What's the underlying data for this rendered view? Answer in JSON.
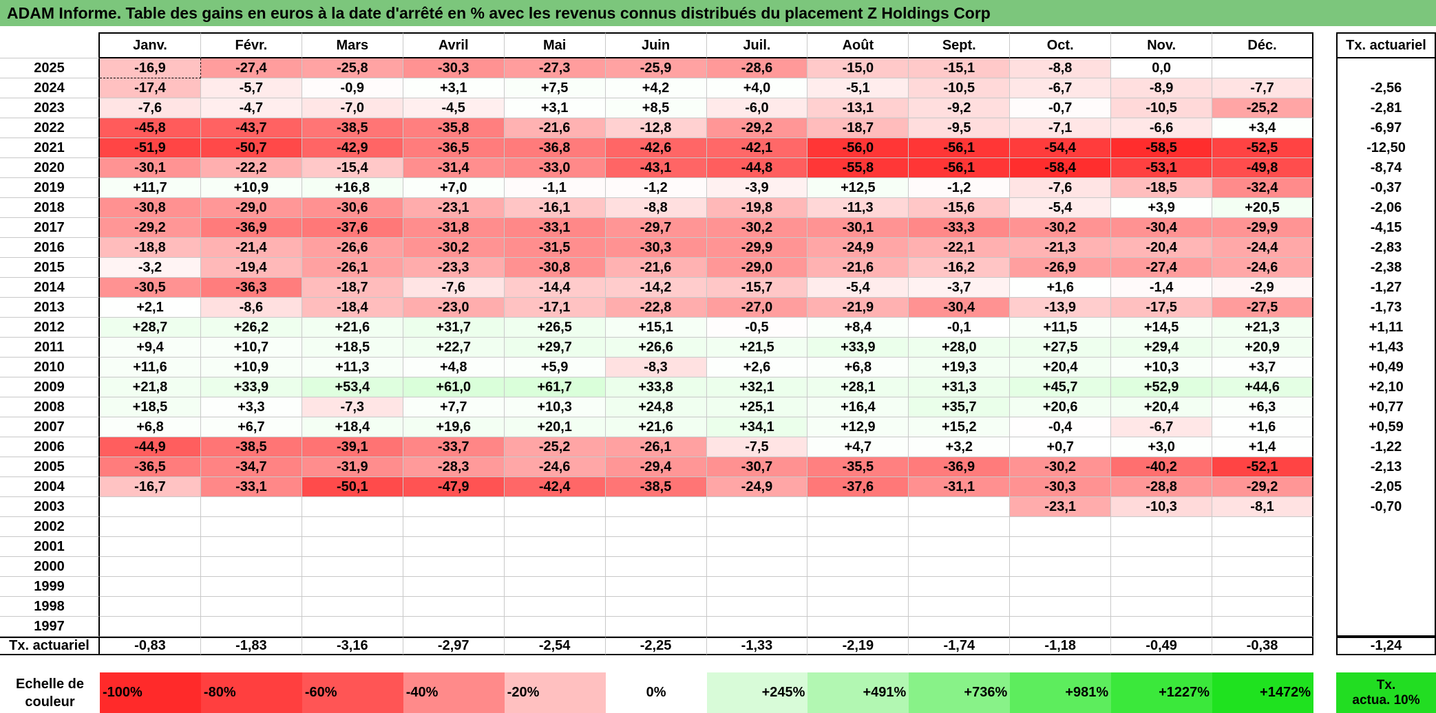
{
  "title": "ADAM Informe. Table des gains en euros à la date d'arrêté en % avec les revenus connus distribués du placement Z Holdings Corp",
  "months": [
    "Janv.",
    "Févr.",
    "Mars",
    "Avril",
    "Mai",
    "Juin",
    "Juil.",
    "Août",
    "Sept.",
    "Oct.",
    "Nov.",
    "Déc."
  ],
  "tx_header": "Tx. actuariel",
  "rows": [
    {
      "year": "2025",
      "values": [
        "-16,9",
        "-27,4",
        "-25,8",
        "-30,3",
        "-27,3",
        "-25,9",
        "-28,6",
        "-15,0",
        "-15,1",
        "-8,8",
        "0,0",
        ""
      ],
      "tx": ""
    },
    {
      "year": "2024",
      "values": [
        "-17,4",
        "-5,7",
        "-0,9",
        "+3,1",
        "+7,5",
        "+4,2",
        "+4,0",
        "-5,1",
        "-10,5",
        "-6,7",
        "-8,9",
        "-7,7"
      ],
      "tx": "-2,56"
    },
    {
      "year": "2023",
      "values": [
        "-7,6",
        "-4,7",
        "-7,0",
        "-4,5",
        "+3,1",
        "+8,5",
        "-6,0",
        "-13,1",
        "-9,2",
        "-0,7",
        "-10,5",
        "-25,2"
      ],
      "tx": "-2,81"
    },
    {
      "year": "2022",
      "values": [
        "-45,8",
        "-43,7",
        "-38,5",
        "-35,8",
        "-21,6",
        "-12,8",
        "-29,2",
        "-18,7",
        "-9,5",
        "-7,1",
        "-6,6",
        "+3,4"
      ],
      "tx": "-6,97"
    },
    {
      "year": "2021",
      "values": [
        "-51,9",
        "-50,7",
        "-42,9",
        "-36,5",
        "-36,8",
        "-42,6",
        "-42,1",
        "-56,0",
        "-56,1",
        "-54,4",
        "-58,5",
        "-52,5"
      ],
      "tx": "-12,50"
    },
    {
      "year": "2020",
      "values": [
        "-30,1",
        "-22,2",
        "-15,4",
        "-31,4",
        "-33,0",
        "-43,1",
        "-44,8",
        "-55,8",
        "-56,1",
        "-58,4",
        "-53,1",
        "-49,8"
      ],
      "tx": "-8,74"
    },
    {
      "year": "2019",
      "values": [
        "+11,7",
        "+10,9",
        "+16,8",
        "+7,0",
        "-1,1",
        "-1,2",
        "-3,9",
        "+12,5",
        "-1,2",
        "-7,6",
        "-18,5",
        "-32,4"
      ],
      "tx": "-0,37"
    },
    {
      "year": "2018",
      "values": [
        "-30,8",
        "-29,0",
        "-30,6",
        "-23,1",
        "-16,1",
        "-8,8",
        "-19,8",
        "-11,3",
        "-15,6",
        "-5,4",
        "+3,9",
        "+20,5"
      ],
      "tx": "-2,06"
    },
    {
      "year": "2017",
      "values": [
        "-29,2",
        "-36,9",
        "-37,6",
        "-31,8",
        "-33,1",
        "-29,7",
        "-30,2",
        "-30,1",
        "-33,3",
        "-30,2",
        "-30,4",
        "-29,9"
      ],
      "tx": "-4,15"
    },
    {
      "year": "2016",
      "values": [
        "-18,8",
        "-21,4",
        "-26,6",
        "-30,2",
        "-31,5",
        "-30,3",
        "-29,9",
        "-24,9",
        "-22,1",
        "-21,3",
        "-20,4",
        "-24,4"
      ],
      "tx": "-2,83"
    },
    {
      "year": "2015",
      "values": [
        "-3,2",
        "-19,4",
        "-26,1",
        "-23,3",
        "-30,8",
        "-21,6",
        "-29,0",
        "-21,6",
        "-16,2",
        "-26,9",
        "-27,4",
        "-24,6"
      ],
      "tx": "-2,38"
    },
    {
      "year": "2014",
      "values": [
        "-30,5",
        "-36,3",
        "-18,7",
        "-7,6",
        "-14,4",
        "-14,2",
        "-15,7",
        "-5,4",
        "-3,7",
        "+1,6",
        "-1,4",
        "-2,9"
      ],
      "tx": "-1,27"
    },
    {
      "year": "2013",
      "values": [
        "+2,1",
        "-8,6",
        "-18,4",
        "-23,0",
        "-17,1",
        "-22,8",
        "-27,0",
        "-21,9",
        "-30,4",
        "-13,9",
        "-17,5",
        "-27,5"
      ],
      "tx": "-1,73"
    },
    {
      "year": "2012",
      "values": [
        "+28,7",
        "+26,2",
        "+21,6",
        "+31,7",
        "+26,5",
        "+15,1",
        "-0,5",
        "+8,4",
        "-0,1",
        "+11,5",
        "+14,5",
        "+21,3"
      ],
      "tx": "+1,11"
    },
    {
      "year": "2011",
      "values": [
        "+9,4",
        "+10,7",
        "+18,5",
        "+22,7",
        "+29,7",
        "+26,6",
        "+21,5",
        "+33,9",
        "+28,0",
        "+27,5",
        "+29,4",
        "+20,9"
      ],
      "tx": "+1,43"
    },
    {
      "year": "2010",
      "values": [
        "+11,6",
        "+10,9",
        "+11,3",
        "+4,8",
        "+5,9",
        "-8,3",
        "+2,6",
        "+6,8",
        "+19,3",
        "+20,4",
        "+10,3",
        "+3,7"
      ],
      "tx": "+0,49"
    },
    {
      "year": "2009",
      "values": [
        "+21,8",
        "+33,9",
        "+53,4",
        "+61,0",
        "+61,7",
        "+33,8",
        "+32,1",
        "+28,1",
        "+31,3",
        "+45,7",
        "+52,9",
        "+44,6"
      ],
      "tx": "+2,10"
    },
    {
      "year": "2008",
      "values": [
        "+18,5",
        "+3,3",
        "-7,3",
        "+7,7",
        "+10,3",
        "+24,8",
        "+25,1",
        "+16,4",
        "+35,7",
        "+20,6",
        "+20,4",
        "+6,3"
      ],
      "tx": "+0,77"
    },
    {
      "year": "2007",
      "values": [
        "+6,8",
        "+6,7",
        "+18,4",
        "+19,6",
        "+20,1",
        "+21,6",
        "+34,1",
        "+12,9",
        "+15,2",
        "-0,4",
        "-6,7",
        "+1,6"
      ],
      "tx": "+0,59"
    },
    {
      "year": "2006",
      "values": [
        "-44,9",
        "-38,5",
        "-39,1",
        "-33,7",
        "-25,2",
        "-26,1",
        "-7,5",
        "+4,7",
        "+3,2",
        "+0,7",
        "+3,0",
        "+1,4"
      ],
      "tx": "-1,22"
    },
    {
      "year": "2005",
      "values": [
        "-36,5",
        "-34,7",
        "-31,9",
        "-28,3",
        "-24,6",
        "-29,4",
        "-30,7",
        "-35,5",
        "-36,9",
        "-30,2",
        "-40,2",
        "-52,1"
      ],
      "tx": "-2,13"
    },
    {
      "year": "2004",
      "values": [
        "-16,7",
        "-33,1",
        "-50,1",
        "-47,9",
        "-42,4",
        "-38,5",
        "-24,9",
        "-37,6",
        "-31,1",
        "-30,3",
        "-28,8",
        "-29,2"
      ],
      "tx": "-2,05"
    },
    {
      "year": "2003",
      "values": [
        "",
        "",
        "",
        "",
        "",
        "",
        "",
        "",
        "",
        "-23,1",
        "-10,3",
        "-8,1"
      ],
      "tx": "-0,70"
    },
    {
      "year": "2002",
      "values": [
        "",
        "",
        "",
        "",
        "",
        "",
        "",
        "",
        "",
        "",
        "",
        ""
      ],
      "tx": ""
    },
    {
      "year": "2001",
      "values": [
        "",
        "",
        "",
        "",
        "",
        "",
        "",
        "",
        "",
        "",
        "",
        ""
      ],
      "tx": ""
    },
    {
      "year": "2000",
      "values": [
        "",
        "",
        "",
        "",
        "",
        "",
        "",
        "",
        "",
        "",
        "",
        ""
      ],
      "tx": ""
    },
    {
      "year": "1999",
      "values": [
        "",
        "",
        "",
        "",
        "",
        "",
        "",
        "",
        "",
        "",
        "",
        ""
      ],
      "tx": ""
    },
    {
      "year": "1998",
      "values": [
        "",
        "",
        "",
        "",
        "",
        "",
        "",
        "",
        "",
        "",
        "",
        ""
      ],
      "tx": ""
    },
    {
      "year": "1997",
      "values": [
        "",
        "",
        "",
        "",
        "",
        "",
        "",
        "",
        "",
        "",
        "",
        ""
      ],
      "tx": ""
    }
  ],
  "summary": {
    "label": "Tx. actuariel",
    "values": [
      "-0,83",
      "-1,83",
      "-3,16",
      "-2,97",
      "-2,54",
      "-2,25",
      "-1,33",
      "-2,19",
      "-1,74",
      "-1,18",
      "-0,49",
      "-0,38"
    ],
    "tx": "-1,24"
  },
  "scale": {
    "label_line1": "Echelle de",
    "label_line2": "couleur",
    "stops": [
      {
        "label": "-100%",
        "color": "#ff2a2a",
        "kind": "neg"
      },
      {
        "label": "-80%",
        "color": "#ff3f3f",
        "kind": "neg"
      },
      {
        "label": "-60%",
        "color": "#ff5555",
        "kind": "neg"
      },
      {
        "label": "-40%",
        "color": "#ff8a8a",
        "kind": "neg"
      },
      {
        "label": "-20%",
        "color": "#ffc0c0",
        "kind": "neg"
      },
      {
        "label": "0%",
        "color": "#ffffff",
        "kind": "zero"
      },
      {
        "label": "+245%",
        "color": "#d8fbd8",
        "kind": "pos"
      },
      {
        "label": "+491%",
        "color": "#b2f7b2",
        "kind": "pos"
      },
      {
        "label": "+736%",
        "color": "#88f288",
        "kind": "pos"
      },
      {
        "label": "+981%",
        "color": "#5ded5d",
        "kind": "pos"
      },
      {
        "label": "+1227%",
        "color": "#3be83b",
        "kind": "pos"
      },
      {
        "label": "+1472%",
        "color": "#1fe21f",
        "kind": "pos"
      }
    ],
    "final_line1": "Tx.",
    "final_line2": "actua. 10%"
  },
  "highlight_cell": {
    "year": "2025",
    "month": "Janv."
  }
}
